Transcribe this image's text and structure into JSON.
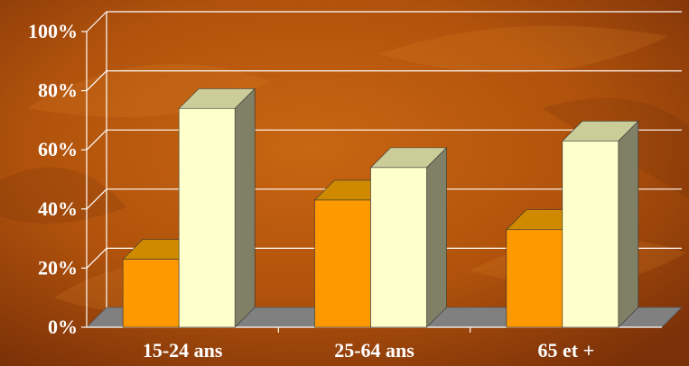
{
  "chart_data": {
    "type": "bar",
    "categories": [
      "15-24 ans",
      "25-64 ans",
      "65 et +"
    ],
    "series": [
      {
        "values": [
          23,
          43,
          33
        ],
        "color": "#ff9900"
      },
      {
        "values": [
          74,
          54,
          63
        ],
        "color": "#ffffcc"
      }
    ],
    "ylim": [
      0,
      100
    ],
    "y_ticks": [
      0,
      20,
      40,
      60,
      80,
      100
    ],
    "y_tick_labels": [
      "0%",
      "20%",
      "40%",
      "60%",
      "80%",
      "100%"
    ],
    "grid": true,
    "three_d": true,
    "legend": "none"
  },
  "colors": {
    "background": "#b85a10",
    "background_dark": "#7a3008",
    "floor": "#808080",
    "grid": "#ffffff",
    "side_shade_orange": "#c07000",
    "top_shade_orange": "#d08a00",
    "side_shade_cream": "#808066",
    "top_shade_cream": "#cccc99"
  }
}
